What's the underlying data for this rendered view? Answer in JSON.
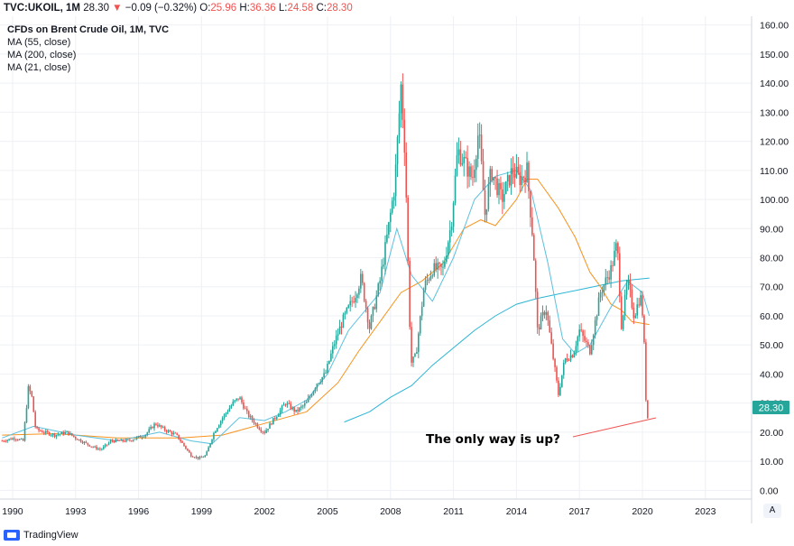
{
  "header": {
    "symbol": "TVC:UKOIL, 1M",
    "last": "28.30",
    "change": "−0.09 (−0.32%)",
    "o_label": "O:",
    "o": "25.96",
    "h_label": "H:",
    "h": "36.36",
    "l_label": "L:",
    "l": "24.58",
    "c_label": "C:",
    "c": "28.30",
    "down_arrow": "▼"
  },
  "legend": {
    "title": "CFDs on Brent Crude Oil, 1M, TVC",
    "ma1": "MA (55, close)",
    "ma2": "MA (200, close)",
    "ma3": "MA (21, close)"
  },
  "annotation": "The only way is up?",
  "price_badge": "28.30",
  "footer": {
    "brand": "TradingView"
  },
  "auto_label": "A",
  "colors": {
    "up": "#26a69a",
    "down": "#ef5350",
    "ma55": "#f7931e",
    "ma200": "#2bb5d6",
    "ma21": "#5bc0de",
    "grid": "#eef0f4",
    "badge": "#26a69a",
    "arrow": "#ef5350"
  },
  "chart_data": {
    "type": "candlestick",
    "title": "CFDs on Brent Crude Oil, 1M, TVC",
    "xlabel": "",
    "ylabel": "",
    "xlim": [
      1989.4,
      2025.2
    ],
    "ylim": [
      -3,
      163
    ],
    "x_ticks": [
      "1990",
      "1993",
      "1996",
      "1999",
      "2002",
      "2005",
      "2008",
      "2011",
      "2014",
      "2017",
      "2020",
      "2023"
    ],
    "x_tick_values": [
      1990,
      1993,
      1996,
      1999,
      2002,
      2005,
      2008,
      2011,
      2014,
      2017,
      2020,
      2023
    ],
    "y_ticks": [
      "0.00",
      "10.00",
      "20.00",
      "30.00",
      "40.00",
      "50.00",
      "60.00",
      "70.00",
      "80.00",
      "90.00",
      "100.00",
      "110.00",
      "120.00",
      "130.00",
      "140.00",
      "150.00",
      "160.00"
    ],
    "y_tick_values": [
      0,
      10,
      20,
      30,
      40,
      50,
      60,
      70,
      80,
      90,
      100,
      110,
      120,
      130,
      140,
      150,
      160
    ],
    "price_anchors": [
      [
        1989.5,
        17
      ],
      [
        1990.1,
        18
      ],
      [
        1990.5,
        17
      ],
      [
        1990.75,
        35
      ],
      [
        1990.9,
        33
      ],
      [
        1991.1,
        21
      ],
      [
        1991.5,
        20
      ],
      [
        1992.0,
        19
      ],
      [
        1992.6,
        20
      ],
      [
        1993.0,
        18
      ],
      [
        1993.8,
        15
      ],
      [
        1994.2,
        14
      ],
      [
        1994.7,
        17
      ],
      [
        1995.5,
        17
      ],
      [
        1996.3,
        19
      ],
      [
        1996.8,
        23
      ],
      [
        1997.2,
        21
      ],
      [
        1997.8,
        19
      ],
      [
        1998.5,
        12
      ],
      [
        1998.9,
        11
      ],
      [
        1999.2,
        12
      ],
      [
        1999.6,
        20
      ],
      [
        2000.0,
        25
      ],
      [
        2000.5,
        30
      ],
      [
        2000.8,
        32
      ],
      [
        2001.2,
        26
      ],
      [
        2001.8,
        21
      ],
      [
        2002.0,
        20
      ],
      [
        2002.5,
        25
      ],
      [
        2003.0,
        30
      ],
      [
        2003.5,
        27
      ],
      [
        2004.0,
        30
      ],
      [
        2004.5,
        37
      ],
      [
        2004.9,
        40
      ],
      [
        2005.3,
        50
      ],
      [
        2005.7,
        58
      ],
      [
        2006.3,
        67
      ],
      [
        2006.6,
        73
      ],
      [
        2007.0,
        56
      ],
      [
        2007.5,
        72
      ],
      [
        2007.9,
        90
      ],
      [
        2008.2,
        105
      ],
      [
        2008.5,
        139
      ],
      [
        2008.7,
        115
      ],
      [
        2008.9,
        60
      ],
      [
        2009.0,
        44
      ],
      [
        2009.2,
        46
      ],
      [
        2009.6,
        70
      ],
      [
        2010.0,
        76
      ],
      [
        2010.5,
        76
      ],
      [
        2010.9,
        92
      ],
      [
        2011.2,
        117
      ],
      [
        2011.5,
        113
      ],
      [
        2011.9,
        107
      ],
      [
        2012.2,
        124
      ],
      [
        2012.5,
        95
      ],
      [
        2012.8,
        110
      ],
      [
        2013.3,
        100
      ],
      [
        2013.8,
        110
      ],
      [
        2014.2,
        107
      ],
      [
        2014.5,
        110
      ],
      [
        2014.8,
        85
      ],
      [
        2015.0,
        55
      ],
      [
        2015.4,
        63
      ],
      [
        2015.7,
        48
      ],
      [
        2016.0,
        33
      ],
      [
        2016.3,
        45
      ],
      [
        2016.7,
        47
      ],
      [
        2017.0,
        55
      ],
      [
        2017.5,
        48
      ],
      [
        2018.0,
        68
      ],
      [
        2018.5,
        76
      ],
      [
        2018.8,
        85
      ],
      [
        2019.0,
        57
      ],
      [
        2019.3,
        72
      ],
      [
        2019.6,
        60
      ],
      [
        2019.9,
        67
      ],
      [
        2020.05,
        58
      ],
      [
        2020.15,
        33
      ],
      [
        2020.25,
        25
      ],
      [
        2020.33,
        28
      ]
    ],
    "series": [
      {
        "name": "MA (55, close)",
        "points": [
          [
            1989.5,
            19
          ],
          [
            1992,
            19.5
          ],
          [
            1995,
            18
          ],
          [
            1998,
            18
          ],
          [
            2000,
            19
          ],
          [
            2002,
            23
          ],
          [
            2004,
            27
          ],
          [
            2005.5,
            37
          ],
          [
            2006.5,
            48
          ],
          [
            2007.5,
            58
          ],
          [
            2008.5,
            68
          ],
          [
            2009.5,
            72
          ],
          [
            2010.5,
            78
          ],
          [
            2011.5,
            90
          ],
          [
            2012.3,
            93
          ],
          [
            2013,
            91
          ],
          [
            2014,
            100
          ],
          [
            2014.5,
            107
          ],
          [
            2015,
            107
          ],
          [
            2016,
            97
          ],
          [
            2016.8,
            87
          ],
          [
            2017.5,
            75
          ],
          [
            2018,
            70
          ],
          [
            2018.5,
            64
          ],
          [
            2019,
            62
          ],
          [
            2019.5,
            58
          ],
          [
            2020.33,
            57
          ]
        ]
      },
      {
        "name": "MA (200, close)",
        "points": [
          [
            2005.8,
            23.5
          ],
          [
            2007,
            27
          ],
          [
            2008,
            32
          ],
          [
            2009,
            36
          ],
          [
            2010,
            43
          ],
          [
            2011,
            49
          ],
          [
            2012,
            55
          ],
          [
            2013,
            60
          ],
          [
            2014,
            64
          ],
          [
            2015,
            66
          ],
          [
            2016,
            67.5
          ],
          [
            2017,
            69
          ],
          [
            2018,
            70.5
          ],
          [
            2019,
            72
          ],
          [
            2020.33,
            73
          ]
        ]
      },
      {
        "name": "MA (21, close)",
        "points": [
          [
            1989.5,
            18
          ],
          [
            1991,
            22
          ],
          [
            1993,
            19
          ],
          [
            1995,
            17
          ],
          [
            1997,
            20
          ],
          [
            1998.5,
            17
          ],
          [
            1999.5,
            16
          ],
          [
            2000.8,
            25
          ],
          [
            2002,
            24
          ],
          [
            2003,
            27
          ],
          [
            2004,
            31
          ],
          [
            2005,
            40
          ],
          [
            2006,
            55
          ],
          [
            2007.5,
            68
          ],
          [
            2008.3,
            90
          ],
          [
            2009,
            74
          ],
          [
            2010,
            65
          ],
          [
            2011,
            80
          ],
          [
            2012,
            100
          ],
          [
            2013,
            108
          ],
          [
            2014,
            110
          ],
          [
            2014.7,
            103
          ],
          [
            2015.5,
            78
          ],
          [
            2016.2,
            52
          ],
          [
            2016.8,
            47
          ],
          [
            2017.5,
            50
          ],
          [
            2018.5,
            63
          ],
          [
            2019.3,
            72
          ],
          [
            2020,
            68
          ],
          [
            2020.33,
            60
          ]
        ]
      }
    ]
  }
}
